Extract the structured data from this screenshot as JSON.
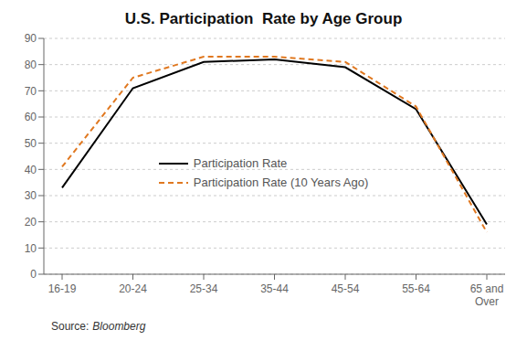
{
  "chart_data": {
    "type": "line",
    "title": "U.S. Participation  Rate by Age Group",
    "categories": [
      "16-19",
      "20-24",
      "25-34",
      "35-44",
      "45-54",
      "55-64",
      "65 and\nOver"
    ],
    "series": [
      {
        "name": "Participation Rate",
        "color": "#000000",
        "line_style": "solid",
        "values": [
          33,
          71,
          81,
          82,
          79,
          63,
          19
        ]
      },
      {
        "name": "Participation Rate (10 Years Ago)",
        "color": "#e07820",
        "line_style": "dashed",
        "values": [
          41,
          75,
          83,
          83,
          81,
          64,
          16
        ]
      }
    ],
    "ylim": [
      0,
      90
    ],
    "yticks": [
      0,
      10,
      20,
      30,
      40,
      50,
      60,
      70,
      80,
      90
    ],
    "grid": true,
    "legend": "center",
    "annotations": [
      "Source:",
      "Bloomberg"
    ]
  }
}
